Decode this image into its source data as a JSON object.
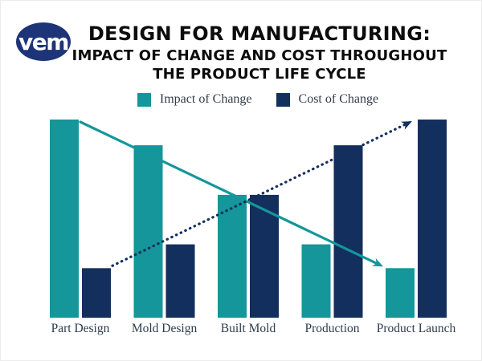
{
  "header": {
    "logo_text": "vem",
    "logo_color": "#1d3478",
    "title": "DESIGN FOR MANUFACTURING:",
    "subtitle_lines": [
      "IMPACT OF CHANGE AND COST THROUGHOUT",
      "THE PRODUCT LIFE CYCLE"
    ]
  },
  "chart_data": {
    "type": "bar",
    "title": "DESIGN FOR MANUFACTURING: IMPACT OF CHANGE AND COST THROUGHOUT THE PRODUCT LIFE CYCLE",
    "categories": [
      "Part Design",
      "Mold Design",
      "Built Mold",
      "Production",
      "Product Launch"
    ],
    "series": [
      {
        "name": "Impact of Change",
        "color": "#14969a",
        "values": [
          100,
          87,
          62,
          37,
          25
        ]
      },
      {
        "name": "Cost of Change",
        "color": "#132f5d",
        "values": [
          25,
          37,
          62,
          87,
          100
        ]
      }
    ],
    "ylim": [
      0,
      100
    ],
    "xlabel": "",
    "ylabel": "",
    "grid": false,
    "axes_visible": false,
    "value_labels_visible": false,
    "legend_position": "top",
    "label_color": "#2e3c4d",
    "annotations": [
      {
        "type": "arrow",
        "name": "impact-trend-arrow",
        "series_index": 0,
        "direction": "down",
        "style": "solid",
        "color": "#14969a"
      },
      {
        "type": "arrow",
        "name": "cost-trend-arrow",
        "series_index": 1,
        "direction": "up",
        "style": "dotted",
        "color": "#132f5d"
      }
    ]
  }
}
